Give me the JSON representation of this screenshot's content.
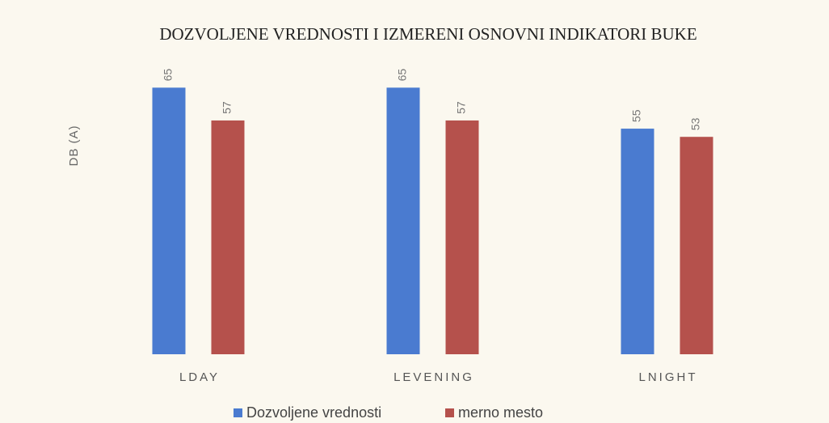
{
  "chart_data": {
    "type": "bar",
    "title": "DOZVOLJENE VREDNOSTI I IZMERENI OSNOVNI INDIKATORI BUKE",
    "y_label": "DB (A)",
    "categories": [
      "LDAY",
      "LEVENING",
      "LNIGHT"
    ],
    "series": [
      {
        "name": "Dozvoljene vrednosti",
        "color": "#4a7bd0",
        "values": [
          65,
          65,
          55
        ]
      },
      {
        "name": "merno mesto",
        "color": "#b5514c",
        "values": [
          57,
          57,
          53
        ]
      }
    ],
    "ylim": [
      0,
      70
    ],
    "legend": "bottom"
  }
}
